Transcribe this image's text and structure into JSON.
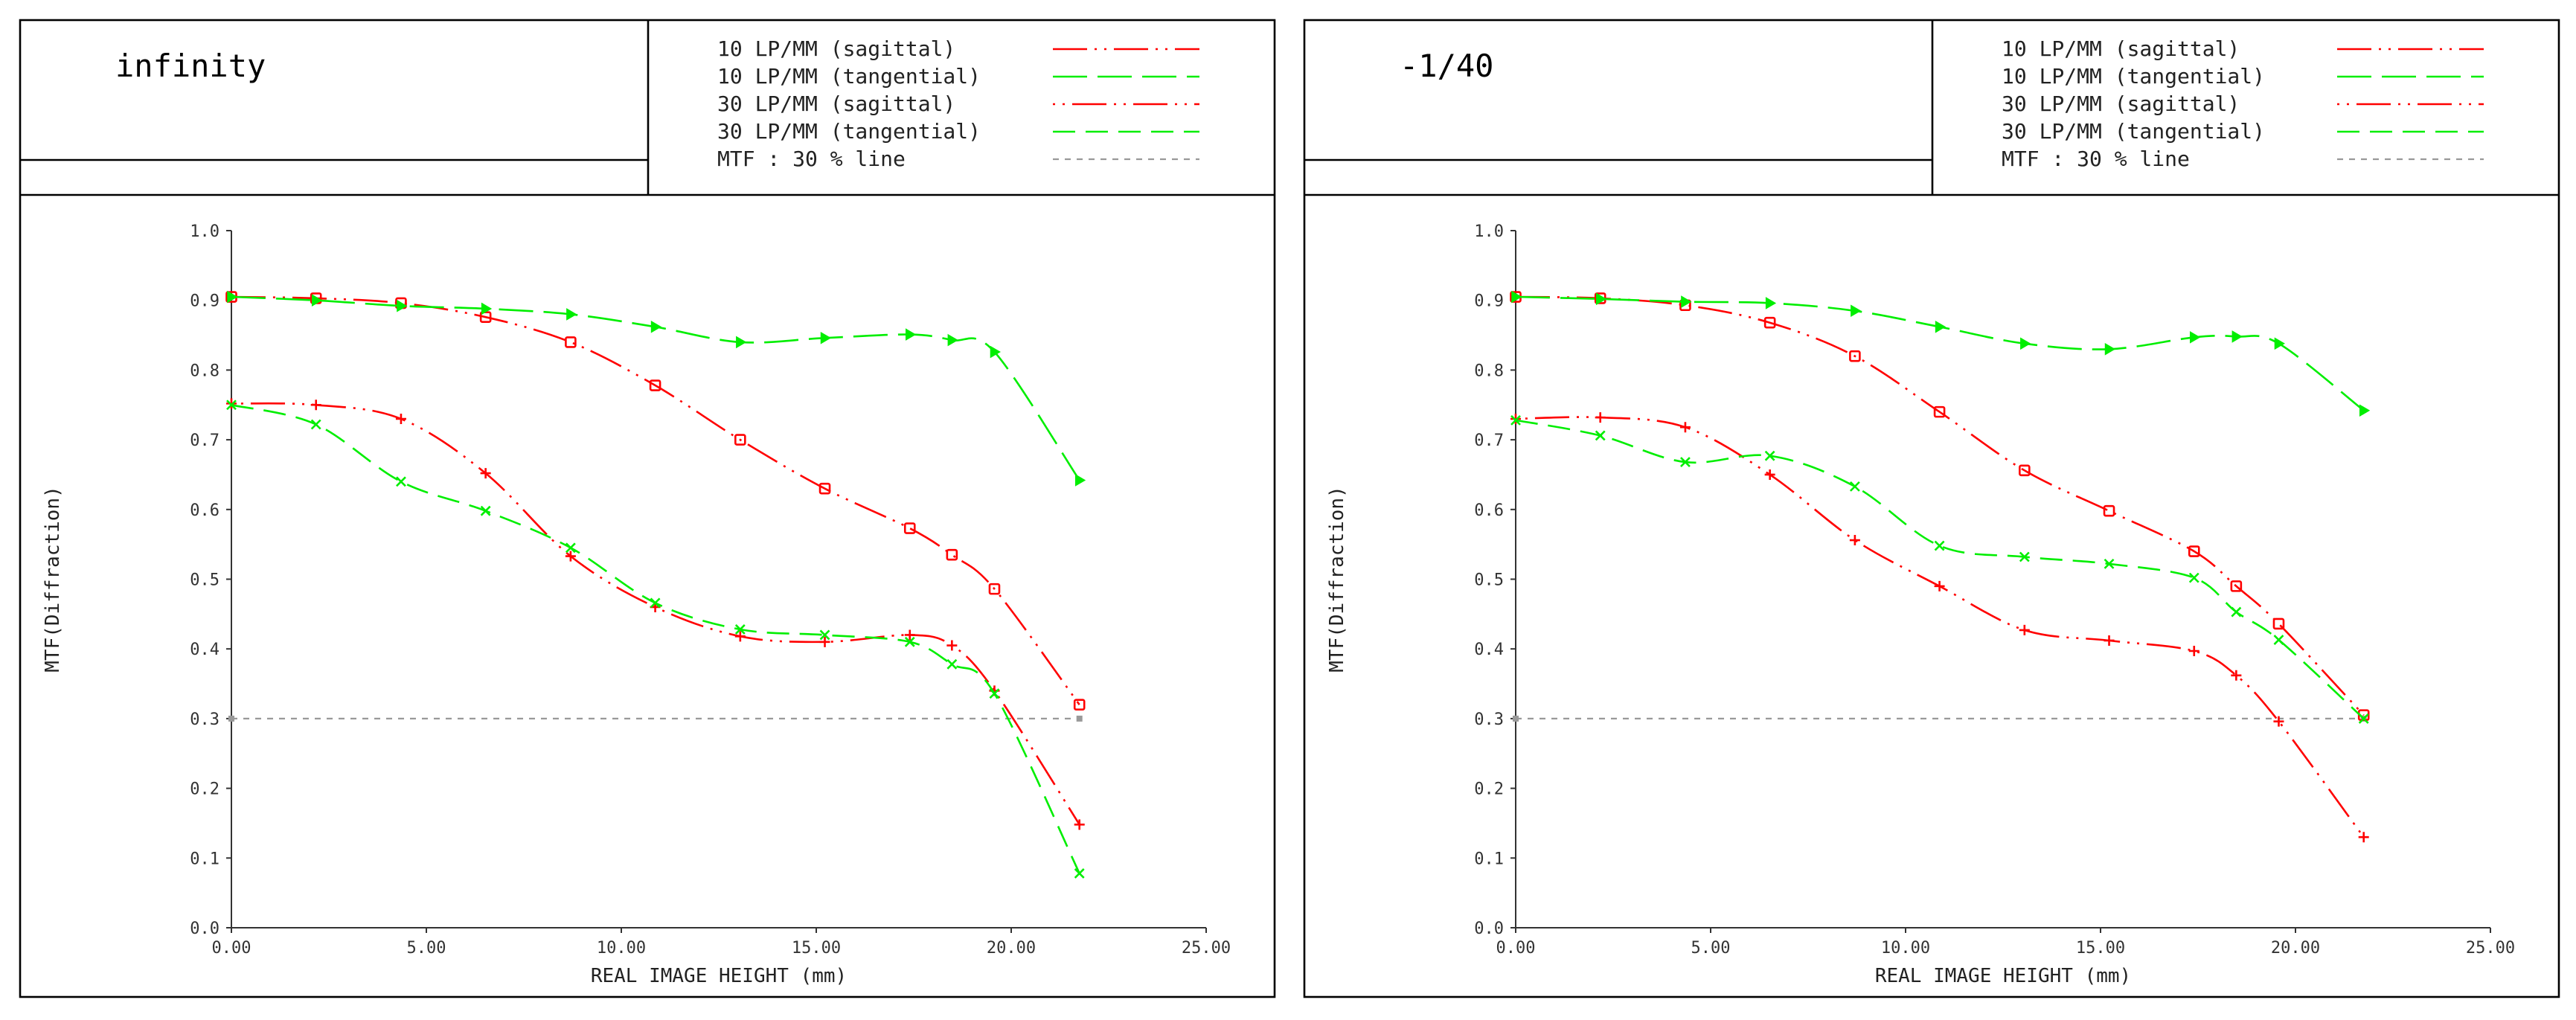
{
  "colors": {
    "sagittal": "#ff0000",
    "tangential": "#00ee00",
    "mtf30": "#999999",
    "frame": "#000000",
    "axis_text": "#333333"
  },
  "chart_data": [
    {
      "type": "line",
      "title": "infinity",
      "xlabel": "REAL IMAGE HEIGHT (mm)",
      "ylabel": "MTF(Diffraction)",
      "xlim": [
        0,
        25
      ],
      "ylim": [
        0,
        1
      ],
      "xticks": [
        "0.00",
        "5.00",
        "10.00",
        "15.00",
        "20.00",
        "25.00"
      ],
      "yticks": [
        "0.0",
        "0.1",
        "0.2",
        "0.3",
        "0.4",
        "0.5",
        "0.6",
        "0.7",
        "0.8",
        "0.9",
        "1.0"
      ],
      "legend": [
        {
          "label": "10 LP/MM (sagittal)",
          "series": 0
        },
        {
          "label": "10 LP/MM (tangential)",
          "series": 1
        },
        {
          "label": "30 LP/MM (sagittal)",
          "series": 2
        },
        {
          "label": "30 LP/MM (tangential)",
          "series": 3
        },
        {
          "label": "MTF : 30 % line",
          "series": "mtf30"
        }
      ],
      "mtf_line": 0.3,
      "series": [
        {
          "name": "10 LP/MM (sagittal)",
          "color": "sagittal",
          "dash": "ldot",
          "marker": "square",
          "x": [
            0,
            2.17,
            4.35,
            6.52,
            8.7,
            10.87,
            13.05,
            15.22,
            17.4,
            18.48,
            19.57,
            21.75
          ],
          "y": [
            0.905,
            0.903,
            0.896,
            0.876,
            0.84,
            0.778,
            0.7,
            0.63,
            0.573,
            0.535,
            0.486,
            0.32
          ]
        },
        {
          "name": "10 LP/MM (tangential)",
          "color": "tangential",
          "dash": "long",
          "marker": "triangle",
          "x": [
            0,
            2.17,
            4.35,
            6.52,
            8.7,
            10.87,
            13.05,
            15.22,
            17.4,
            18.48,
            19.57,
            21.75
          ],
          "y": [
            0.905,
            0.9,
            0.892,
            0.888,
            0.88,
            0.862,
            0.84,
            0.846,
            0.851,
            0.843,
            0.826,
            0.642
          ]
        },
        {
          "name": "30 LP/MM (sagittal)",
          "color": "sagittal",
          "dash": "dotl",
          "marker": "plus",
          "x": [
            0,
            2.17,
            4.35,
            6.52,
            8.7,
            10.87,
            13.05,
            15.22,
            17.4,
            18.48,
            19.57,
            21.75
          ],
          "y": [
            0.752,
            0.75,
            0.73,
            0.652,
            0.533,
            0.46,
            0.418,
            0.41,
            0.42,
            0.405,
            0.34,
            0.148
          ]
        },
        {
          "name": "30 LP/MM (tangential)",
          "color": "tangential",
          "dash": "medium",
          "marker": "cross",
          "x": [
            0,
            2.17,
            4.35,
            6.52,
            8.7,
            10.87,
            13.05,
            15.22,
            17.4,
            18.48,
            19.57,
            21.75
          ],
          "y": [
            0.75,
            0.722,
            0.64,
            0.598,
            0.545,
            0.466,
            0.428,
            0.42,
            0.41,
            0.378,
            0.336,
            0.078
          ]
        }
      ]
    },
    {
      "type": "line",
      "title": "-1/40",
      "xlabel": "REAL IMAGE HEIGHT (mm)",
      "ylabel": "MTF(Diffraction)",
      "xlim": [
        0,
        25
      ],
      "ylim": [
        0,
        1
      ],
      "xticks": [
        "0.00",
        "5.00",
        "10.00",
        "15.00",
        "20.00",
        "25.00"
      ],
      "yticks": [
        "0.0",
        "0.1",
        "0.2",
        "0.3",
        "0.4",
        "0.5",
        "0.6",
        "0.7",
        "0.8",
        "0.9",
        "1.0"
      ],
      "legend": [
        {
          "label": "10 LP/MM (sagittal)",
          "series": 0
        },
        {
          "label": "10 LP/MM (tangential)",
          "series": 1
        },
        {
          "label": "30 LP/MM (sagittal)",
          "series": 2
        },
        {
          "label": "30 LP/MM (tangential)",
          "series": 3
        },
        {
          "label": "MTF : 30 % line",
          "series": "mtf30"
        }
      ],
      "mtf_line": 0.3,
      "series": [
        {
          "name": "10 LP/MM (sagittal)",
          "color": "sagittal",
          "dash": "ldot",
          "marker": "square",
          "x": [
            0,
            2.17,
            4.35,
            6.52,
            8.7,
            10.87,
            13.05,
            15.22,
            17.4,
            18.48,
            19.57,
            21.75
          ],
          "y": [
            0.905,
            0.903,
            0.893,
            0.868,
            0.82,
            0.74,
            0.656,
            0.598,
            0.54,
            0.49,
            0.436,
            0.305
          ]
        },
        {
          "name": "10 LP/MM (tangential)",
          "color": "tangential",
          "dash": "long",
          "marker": "triangle",
          "x": [
            0,
            2.17,
            4.35,
            6.52,
            8.7,
            10.87,
            13.05,
            15.22,
            17.4,
            18.48,
            19.57,
            21.75
          ],
          "y": [
            0.905,
            0.902,
            0.898,
            0.896,
            0.885,
            0.862,
            0.838,
            0.83,
            0.847,
            0.848,
            0.838,
            0.742
          ]
        },
        {
          "name": "30 LP/MM (sagittal)",
          "color": "sagittal",
          "dash": "dotl",
          "marker": "plus",
          "x": [
            0,
            2.17,
            4.35,
            6.52,
            8.7,
            10.87,
            13.05,
            15.22,
            17.4,
            18.48,
            19.57,
            21.75
          ],
          "y": [
            0.73,
            0.732,
            0.718,
            0.65,
            0.556,
            0.49,
            0.427,
            0.412,
            0.397,
            0.362,
            0.296,
            0.13
          ]
        },
        {
          "name": "30 LP/MM (tangential)",
          "color": "tangential",
          "dash": "medium",
          "marker": "cross",
          "x": [
            0,
            2.17,
            4.35,
            6.52,
            8.7,
            10.87,
            13.05,
            15.22,
            17.4,
            18.48,
            19.57,
            21.75
          ],
          "y": [
            0.728,
            0.706,
            0.668,
            0.677,
            0.633,
            0.548,
            0.532,
            0.522,
            0.502,
            0.453,
            0.413,
            0.3
          ]
        }
      ]
    }
  ]
}
